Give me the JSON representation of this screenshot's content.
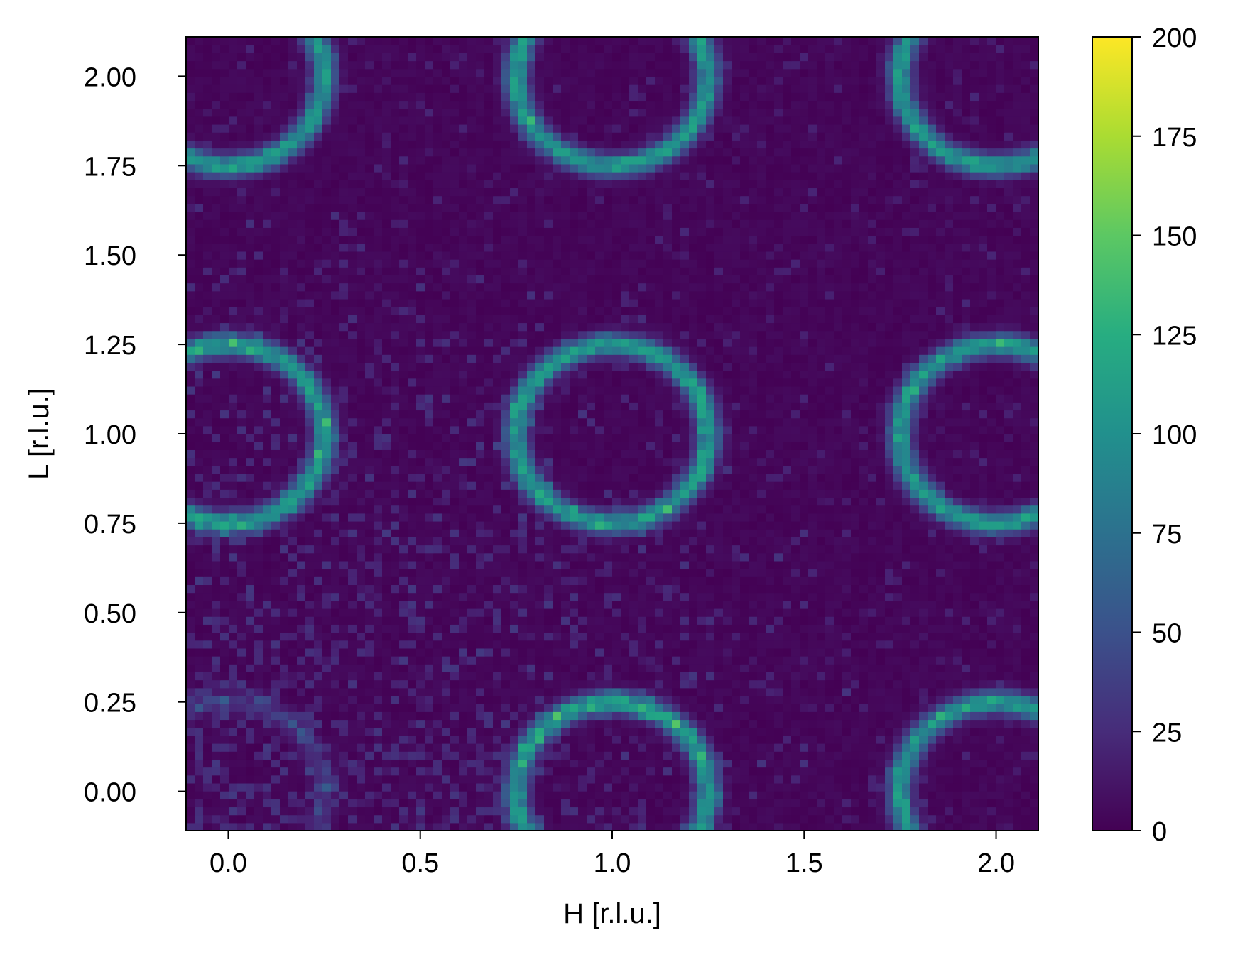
{
  "chart_data": {
    "type": "heatmap",
    "title": "",
    "xlabel": "H [r.l.u.]",
    "ylabel": "L [r.l.u.]",
    "xlim": [
      -0.11,
      2.11
    ],
    "ylim": [
      -0.11,
      2.11
    ],
    "x_ticks": [
      0.0,
      0.5,
      1.0,
      1.5,
      2.0
    ],
    "x_tick_labels": [
      "0.0",
      "0.5",
      "1.0",
      "1.5",
      "2.0"
    ],
    "y_ticks": [
      0.0,
      0.25,
      0.5,
      0.75,
      1.0,
      1.25,
      1.5,
      1.75,
      2.0
    ],
    "y_tick_labels": [
      "0.00",
      "0.25",
      "0.50",
      "0.75",
      "1.00",
      "1.25",
      "1.50",
      "1.75",
      "2.00"
    ],
    "grid": false,
    "colormap": "viridis",
    "colorbar": {
      "range": [
        0,
        200
      ],
      "ticks": [
        0,
        25,
        50,
        75,
        100,
        125,
        150,
        175,
        200
      ],
      "tick_labels": [
        "0",
        "25",
        "50",
        "75",
        "100",
        "125",
        "150",
        "175",
        "200"
      ]
    },
    "bins": 100,
    "ring_radius": 0.25,
    "ring_peak_intensity": 105,
    "background_intensity": 3,
    "rings": [
      {
        "h": 0.0,
        "l": 0.0,
        "intensity": 25
      },
      {
        "h": 1.0,
        "l": 0.0,
        "intensity": 105
      },
      {
        "h": 2.0,
        "l": 0.0,
        "intensity": 105
      },
      {
        "h": 0.0,
        "l": 1.0,
        "intensity": 105
      },
      {
        "h": 1.0,
        "l": 1.0,
        "intensity": 105
      },
      {
        "h": 2.0,
        "l": 1.0,
        "intensity": 105
      },
      {
        "h": 0.0,
        "l": 2.0,
        "intensity": 105
      },
      {
        "h": 1.0,
        "l": 2.0,
        "intensity": 105
      },
      {
        "h": 2.0,
        "l": 2.0,
        "intensity": 105
      }
    ]
  }
}
